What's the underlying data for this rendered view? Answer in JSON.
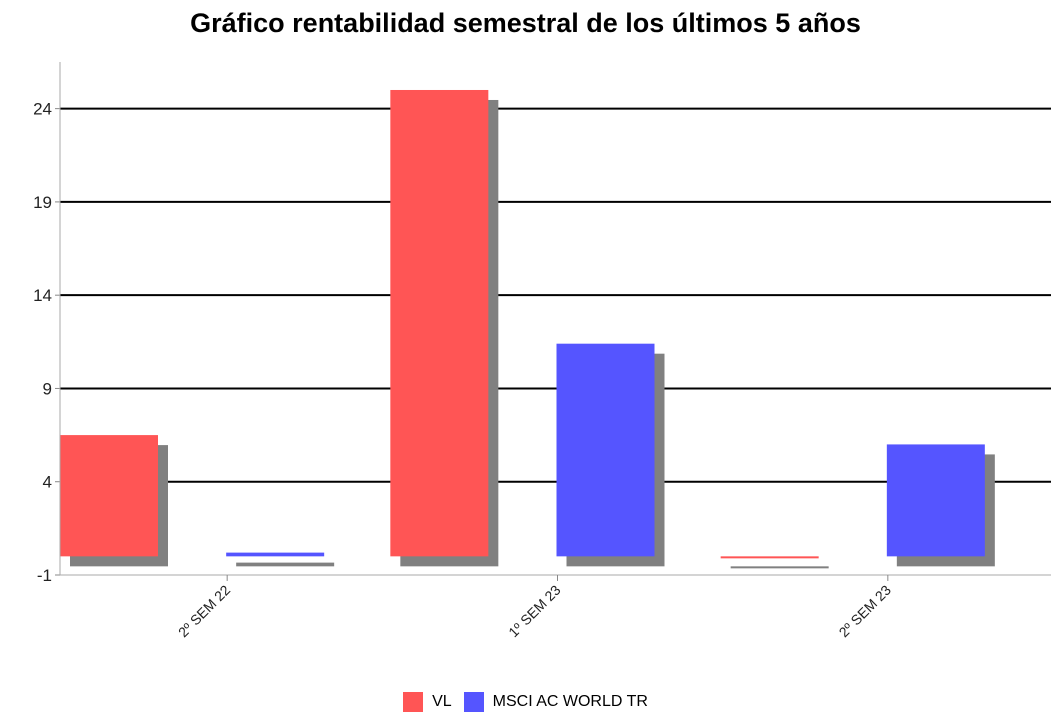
{
  "chart_data": {
    "type": "bar",
    "title": "Gráfico rentabilidad semestral de los últimos 5 años",
    "categories": [
      "2º SEM 22",
      "1º SEM 23",
      "2º SEM 23"
    ],
    "series": [
      {
        "name": "VL",
        "color": "#ff5555",
        "values": [
          6.5,
          25.0,
          -0.1
        ]
      },
      {
        "name": "MSCI AC WORLD TR",
        "color": "#5555ff",
        "values": [
          0.2,
          11.4,
          6.0
        ]
      }
    ],
    "yticks": [
      -1,
      4,
      9,
      14,
      19,
      24
    ],
    "ylim": [
      -1,
      26.5
    ],
    "grid": true,
    "legend_position": "bottom-center",
    "shadow_color": "#808080"
  }
}
